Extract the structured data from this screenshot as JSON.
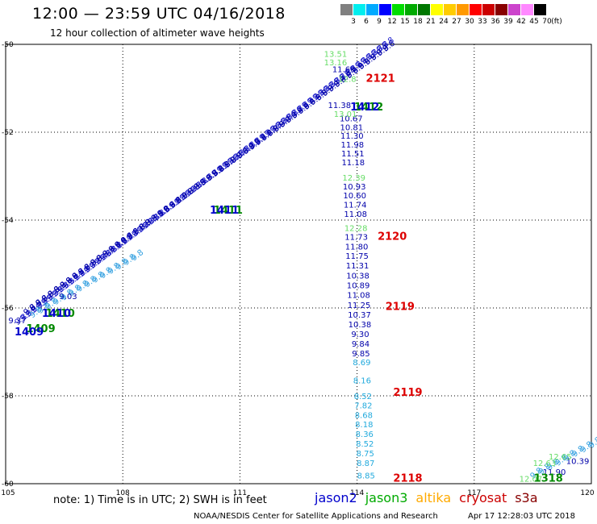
{
  "title": "12:00 — 23:59 UTC 04/16/2018",
  "subtitle": "12 hour collection of altimeter wave heights",
  "colorbar": {
    "unit": "(ft)",
    "ticks": [
      "3",
      "6",
      "9",
      "12",
      "15",
      "18",
      "21",
      "24",
      "27",
      "30",
      "33",
      "36",
      "39",
      "42",
      "45",
      "70"
    ],
    "colors": [
      "#808080",
      "#00eeee",
      "#00aaff",
      "#0000ff",
      "#00dd00",
      "#00aa00",
      "#007700",
      "#ffff00",
      "#ffcc00",
      "#ff9900",
      "#ff0000",
      "#cc0000",
      "#880000",
      "#cc44cc",
      "#ff88ff",
      "#000000"
    ]
  },
  "map": {
    "lon_range": [
      105,
      120
    ],
    "lat_range": [
      -60,
      -50
    ],
    "lon_ticks": [
      "105",
      "108",
      "111",
      "114",
      "117",
      "120"
    ],
    "lat_ticks": [
      "-50",
      "-52",
      "-54",
      "-56",
      "-58",
      "-60"
    ],
    "grid": "dotted"
  },
  "chart_data": {
    "type": "scatter",
    "units": "SWH (ft)",
    "time_labels": [
      {
        "label": "1409",
        "satellite": "jason3",
        "lon": 105.9,
        "lat": -56.55
      },
      {
        "label": "1409",
        "satellite": "jason2",
        "lon": 105.6,
        "lat": -56.62
      },
      {
        "label": "1410",
        "satellite": "jason3",
        "lon": 106.4,
        "lat": -56.2
      },
      {
        "label": "1410",
        "satellite": "jason2",
        "lon": 106.3,
        "lat": -56.2
      },
      {
        "label": "1411",
        "satellite": "jason3",
        "lon": 110.7,
        "lat": -53.85
      },
      {
        "label": "1411",
        "satellite": "jason2",
        "lon": 110.6,
        "lat": -53.85
      },
      {
        "label": "1412",
        "satellite": "jason3",
        "lon": 114.3,
        "lat": -51.5
      },
      {
        "label": "1412",
        "satellite": "jason2",
        "lon": 114.2,
        "lat": -51.5
      },
      {
        "label": "2121",
        "satellite": "cryosat",
        "lon": 114.6,
        "lat": -50.85
      },
      {
        "label": "2120",
        "satellite": "cryosat",
        "lon": 114.9,
        "lat": -54.45
      },
      {
        "label": "2119",
        "satellite": "cryosat",
        "lon": 115.1,
        "lat": -56.05
      },
      {
        "label": "2119",
        "satellite": "cryosat",
        "lon": 115.3,
        "lat": -58.0
      },
      {
        "label": "2118",
        "satellite": "cryosat",
        "lon": 115.3,
        "lat": -59.95
      },
      {
        "label": "1318",
        "satellite": "jason3",
        "lon": 118.9,
        "lat": -59.95
      }
    ],
    "tracks": [
      {
        "satellite": "jason2",
        "points": [
          {
            "lon": 113.85,
            "lat": -51.75,
            "v": "10.67"
          },
          {
            "lon": 113.86,
            "lat": -51.95,
            "v": "10.81"
          },
          {
            "lon": 113.87,
            "lat": -52.15,
            "v": "11.30"
          },
          {
            "lon": 113.88,
            "lat": -52.35,
            "v": "11.98"
          },
          {
            "lon": 113.89,
            "lat": -52.55,
            "v": "11.51"
          },
          {
            "lon": 113.9,
            "lat": -52.75,
            "v": "11.18"
          },
          {
            "lon": 113.93,
            "lat": -53.3,
            "v": "10.93"
          },
          {
            "lon": 113.94,
            "lat": -53.5,
            "v": "10.60"
          },
          {
            "lon": 113.95,
            "lat": -53.72,
            "v": "11.74"
          },
          {
            "lon": 113.96,
            "lat": -53.93,
            "v": "11.08"
          },
          {
            "lon": 113.98,
            "lat": -54.45,
            "v": "11.73"
          },
          {
            "lon": 113.99,
            "lat": -54.67,
            "v": "11.80"
          },
          {
            "lon": 114.0,
            "lat": -54.88,
            "v": "11.75"
          },
          {
            "lon": 114.01,
            "lat": -55.1,
            "v": "11.31"
          },
          {
            "lon": 114.02,
            "lat": -55.33,
            "v": "10.38"
          },
          {
            "lon": 114.03,
            "lat": -55.55,
            "v": "10.89"
          },
          {
            "lon": 114.04,
            "lat": -55.77,
            "v": "11.08"
          },
          {
            "lon": 114.05,
            "lat": -56.0,
            "v": "11.25"
          },
          {
            "lon": 114.06,
            "lat": -56.22,
            "v": "10.37"
          },
          {
            "lon": 114.07,
            "lat": -56.44,
            "v": "10.38"
          },
          {
            "lon": 114.08,
            "lat": -56.66,
            "v": "9.30"
          },
          {
            "lon": 114.09,
            "lat": -56.88,
            "v": "9.84"
          },
          {
            "lon": 114.1,
            "lat": -57.1,
            "v": "9.85"
          },
          {
            "lon": 113.66,
            "lat": -50.63,
            "v": "11.66"
          },
          {
            "lon": 113.55,
            "lat": -51.45,
            "v": "11.38"
          },
          {
            "lon": 119.65,
            "lat": -59.55,
            "v": "10.39"
          },
          {
            "lon": 119.05,
            "lat": -59.8,
            "v": "11.90"
          },
          {
            "lon": 105.3,
            "lat": -56.35,
            "v": "9.37"
          },
          {
            "lon": 106.6,
            "lat": -55.8,
            "v": "9.03"
          }
        ]
      },
      {
        "satellite": "jason3",
        "points": [
          {
            "lon": 113.45,
            "lat": -50.28,
            "v": "13.51"
          },
          {
            "lon": 113.45,
            "lat": -50.48,
            "v": "13.16"
          },
          {
            "lon": 113.75,
            "lat": -50.85,
            "v": "12.8"
          },
          {
            "lon": 113.7,
            "lat": -51.65,
            "v": "13.01"
          },
          {
            "lon": 113.92,
            "lat": -53.1,
            "v": "12.39"
          },
          {
            "lon": 113.97,
            "lat": -54.25,
            "v": "12.28"
          },
          {
            "lon": 118.8,
            "lat": -59.6,
            "v": "12.63"
          },
          {
            "lon": 119.2,
            "lat": -59.45,
            "v": "12.65"
          },
          {
            "lon": 118.45,
            "lat": -59.95,
            "v": "12.07"
          }
        ]
      },
      {
        "satellite": "jason3-cyan",
        "points": [
          {
            "lon": 114.12,
            "lat": -57.3,
            "v": "8.69"
          },
          {
            "lon": 114.13,
            "lat": -57.72,
            "v": "8.16"
          },
          {
            "lon": 114.15,
            "lat": -58.07,
            "v": "8.52"
          },
          {
            "lon": 114.16,
            "lat": -58.28,
            "v": "7.82"
          },
          {
            "lon": 114.17,
            "lat": -58.5,
            "v": "8.68"
          },
          {
            "lon": 114.18,
            "lat": -58.72,
            "v": "8.18"
          },
          {
            "lon": 114.19,
            "lat": -58.94,
            "v": "8.36"
          },
          {
            "lon": 114.2,
            "lat": -59.16,
            "v": "8.52"
          },
          {
            "lon": 114.21,
            "lat": -59.38,
            "v": "8.75"
          },
          {
            "lon": 114.22,
            "lat": -59.6,
            "v": "8.87"
          },
          {
            "lon": 114.23,
            "lat": -59.88,
            "v": "8.85"
          }
        ]
      }
    ]
  },
  "footer": {
    "note": "note:  1) Time is in UTC;  2) SWH is in feet",
    "legend": [
      {
        "name": "jason2",
        "color": "#0000cc"
      },
      {
        "name": "jason3",
        "color": "#00aa00"
      },
      {
        "name": "altika",
        "color": "#ffaa00"
      },
      {
        "name": "cryosat",
        "color": "#cc0000"
      },
      {
        "name": "s3a",
        "color": "#880000"
      }
    ],
    "credit": "NOAA/NESDIS Center for Satellite Applications and Research",
    "timestamp": "Apr 17 12:28:03 UTC 2018"
  }
}
